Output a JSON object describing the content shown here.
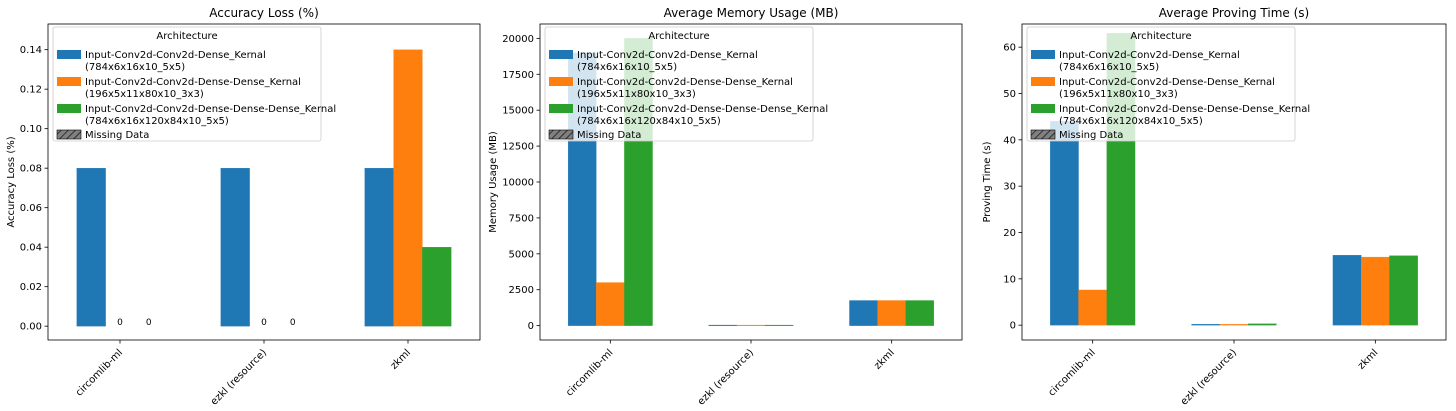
{
  "chart_data": [
    {
      "type": "bar",
      "title": "Accuracy Loss (%)",
      "xlabel": "",
      "ylabel": "Accuracy Loss (%)",
      "categories": [
        "circomlib-ml",
        "ezkl (resource)",
        "zkml"
      ],
      "ylim": [
        -0.007,
        0.153
      ],
      "yticks": [
        0.0,
        0.02,
        0.04,
        0.06,
        0.08,
        0.1,
        0.12,
        0.14
      ],
      "ytick_labels": [
        "0.00",
        "0.02",
        "0.04",
        "0.06",
        "0.08",
        "0.10",
        "0.12",
        "0.14"
      ],
      "grid": false,
      "series": [
        {
          "name": "Input-Conv2d-Conv2d-Dense_Kernal\n(784x6x16x10_5x5)",
          "color": "#1f77b4",
          "values": [
            0.08,
            0.08,
            0.08
          ]
        },
        {
          "name": "Input-Conv2d-Conv2d-Dense-Dense_Kernal\n(196x5x11x80x10_3x3)",
          "color": "#ff7f0e",
          "values": [
            0,
            0,
            0.14
          ]
        },
        {
          "name": "Input-Conv2d-Conv2d-Dense-Dense-Dense_Kernal\n(784x6x16x120x84x10_5x5)",
          "color": "#2ca02c",
          "values": [
            0,
            0,
            0.04
          ]
        }
      ],
      "value_labels": [
        {
          "category": 0,
          "series": 1,
          "text": "0"
        },
        {
          "category": 0,
          "series": 2,
          "text": "0"
        },
        {
          "category": 1,
          "series": 1,
          "text": "0"
        },
        {
          "category": 1,
          "series": 2,
          "text": "0"
        }
      ],
      "legend": {
        "title": "Architecture",
        "placement": "top-left",
        "missing_label": "Missing Data"
      }
    },
    {
      "type": "bar",
      "title": "Average Memory Usage (MB)",
      "xlabel": "",
      "ylabel": "Memory Usage (MB)",
      "categories": [
        "circomlib-ml",
        "ezkl (resource)",
        "zkml"
      ],
      "ylim": [
        -1000,
        21000
      ],
      "yticks": [
        0,
        2500,
        5000,
        7500,
        10000,
        12500,
        15000,
        17500,
        20000
      ],
      "ytick_labels": [
        "0",
        "2500",
        "5000",
        "7500",
        "10000",
        "12500",
        "15000",
        "17500",
        "20000"
      ],
      "grid": false,
      "series": [
        {
          "name": "Input-Conv2d-Conv2d-Dense_Kernal\n(784x6x16x10_5x5)",
          "color": "#1f77b4",
          "values": [
            19000,
            40,
            1750
          ]
        },
        {
          "name": "Input-Conv2d-Conv2d-Dense-Dense_Kernal\n(196x5x11x80x10_3x3)",
          "color": "#ff7f0e",
          "values": [
            3000,
            40,
            1750
          ]
        },
        {
          "name": "Input-Conv2d-Conv2d-Dense-Dense-Dense_Kernal\n(784x6x16x120x84x10_5x5)",
          "color": "#2ca02c",
          "values": [
            20000,
            40,
            1750
          ]
        }
      ],
      "value_labels": [],
      "legend": {
        "title": "Architecture",
        "placement": "top-left",
        "missing_label": "Missing Data"
      }
    },
    {
      "type": "bar",
      "title": "Average Proving Time (s)",
      "xlabel": "",
      "ylabel": "Proving Time (s)",
      "categories": [
        "circomlib-ml",
        "ezkl (resource)",
        "zkml"
      ],
      "ylim": [
        -3.2,
        65
      ],
      "yticks": [
        0,
        10,
        20,
        30,
        40,
        50,
        60
      ],
      "ytick_labels": [
        "0",
        "10",
        "20",
        "30",
        "40",
        "50",
        "60"
      ],
      "grid": false,
      "series": [
        {
          "name": "Input-Conv2d-Conv2d-Dense_Kernal\n(784x6x16x10_5x5)",
          "color": "#1f77b4",
          "values": [
            44,
            0.2,
            15.1
          ]
        },
        {
          "name": "Input-Conv2d-Conv2d-Dense-Dense_Kernal\n(196x5x11x80x10_3x3)",
          "color": "#ff7f0e",
          "values": [
            7.6,
            0.2,
            14.7
          ]
        },
        {
          "name": "Input-Conv2d-Conv2d-Dense-Dense-Dense_Kernal\n(784x6x16x120x84x10_5x5)",
          "color": "#2ca02c",
          "values": [
            63,
            0.3,
            15.0
          ]
        }
      ],
      "value_labels": [],
      "legend": {
        "title": "Architecture",
        "placement": "top-left",
        "missing_label": "Missing Data"
      }
    }
  ]
}
